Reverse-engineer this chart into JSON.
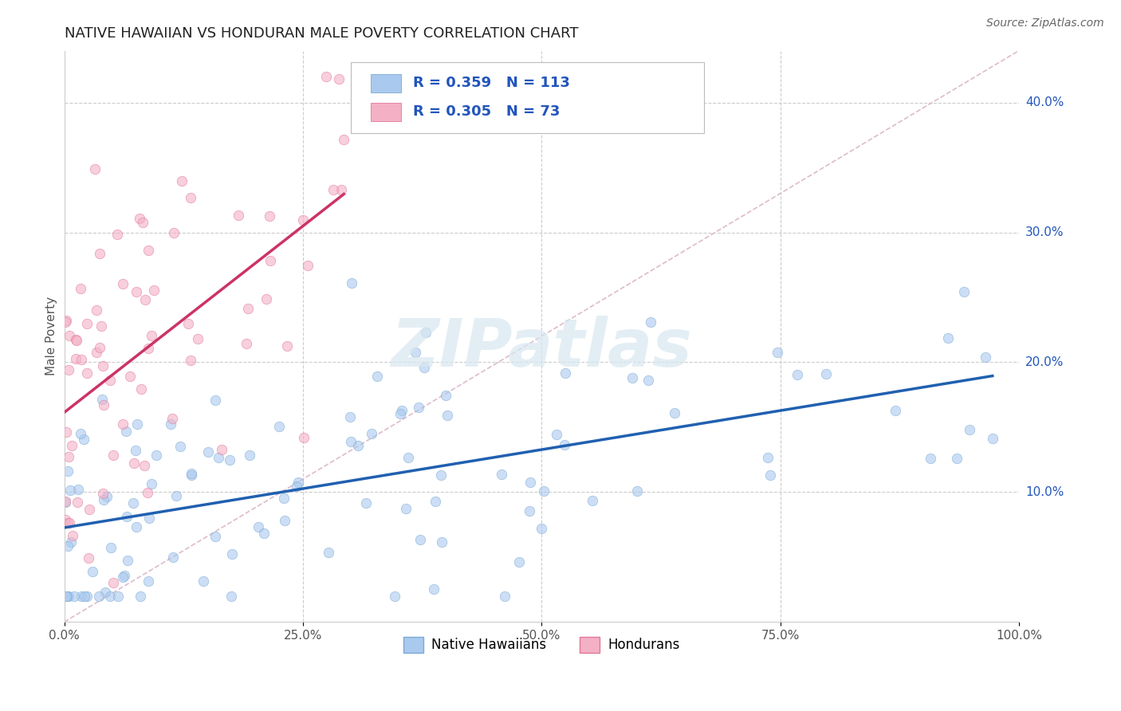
{
  "title": "NATIVE HAWAIIAN VS HONDURAN MALE POVERTY CORRELATION CHART",
  "source_text": "Source: ZipAtlas.com",
  "ylabel": "Male Poverty",
  "xlim": [
    0.0,
    1.0
  ],
  "ylim": [
    0.0,
    0.44
  ],
  "xtick_vals": [
    0.0,
    0.25,
    0.5,
    0.75,
    1.0
  ],
  "xtick_labels": [
    "0.0%",
    "25.0%",
    "50.0%",
    "75.0%",
    "100.0%"
  ],
  "ytick_vals": [
    0.1,
    0.2,
    0.3,
    0.4
  ],
  "ytick_labels": [
    "10.0%",
    "20.0%",
    "30.0%",
    "40.0%"
  ],
  "watermark": "ZIPatlas",
  "nh_color": "#aac9ef",
  "nh_edge": "#7aaad4",
  "hon_color": "#f4b0c5",
  "hon_edge": "#e07898",
  "trend_nh_color": "#2060b0",
  "trend_hon_color": "#cc3366",
  "trend_diag_color": "#ddbbcc",
  "R_nh": 0.359,
  "N_nh": 113,
  "R_hon": 0.305,
  "N_hon": 73,
  "title_fontsize": 13,
  "axis_label_fontsize": 11,
  "tick_fontsize": 11,
  "legend_fontsize": 13,
  "source_fontsize": 10,
  "marker_size": 80,
  "marker_alpha": 0.6
}
